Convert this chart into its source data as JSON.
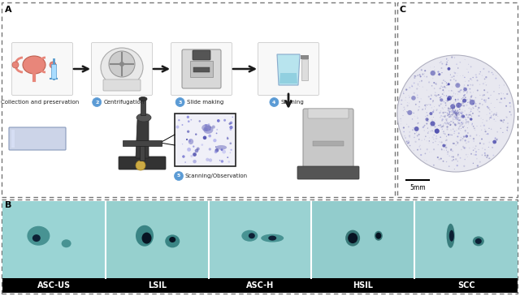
{
  "panel_A_label": "A",
  "panel_B_label": "B",
  "panel_C_label": "C",
  "cell_labels": [
    "ASC-US",
    "LSIL",
    "ASC-H",
    "HSIL",
    "SCC"
  ],
  "scale_label": "5mm",
  "bg_color": "#ffffff",
  "dashed_color": "#777777",
  "panel_label_color": "#000000",
  "arrow_color": "#1a1a1a",
  "step_texts": [
    "Collection and preservation",
    "Centrifugation",
    "Slide making",
    "Staining",
    "Scanning/Observation"
  ],
  "step_number_color": "#5b9bd5",
  "circle_fill": "#ededf5",
  "circle_edge": "#c0c0cc",
  "cell_teal_light": "#a8d8d8",
  "cell_teal_mid": "#5aacaa",
  "cell_teal_dark": "#2a7070",
  "cell_nucleus_color": "#0a2040",
  "label_bg": "#000000",
  "label_fg": "#ffffff"
}
